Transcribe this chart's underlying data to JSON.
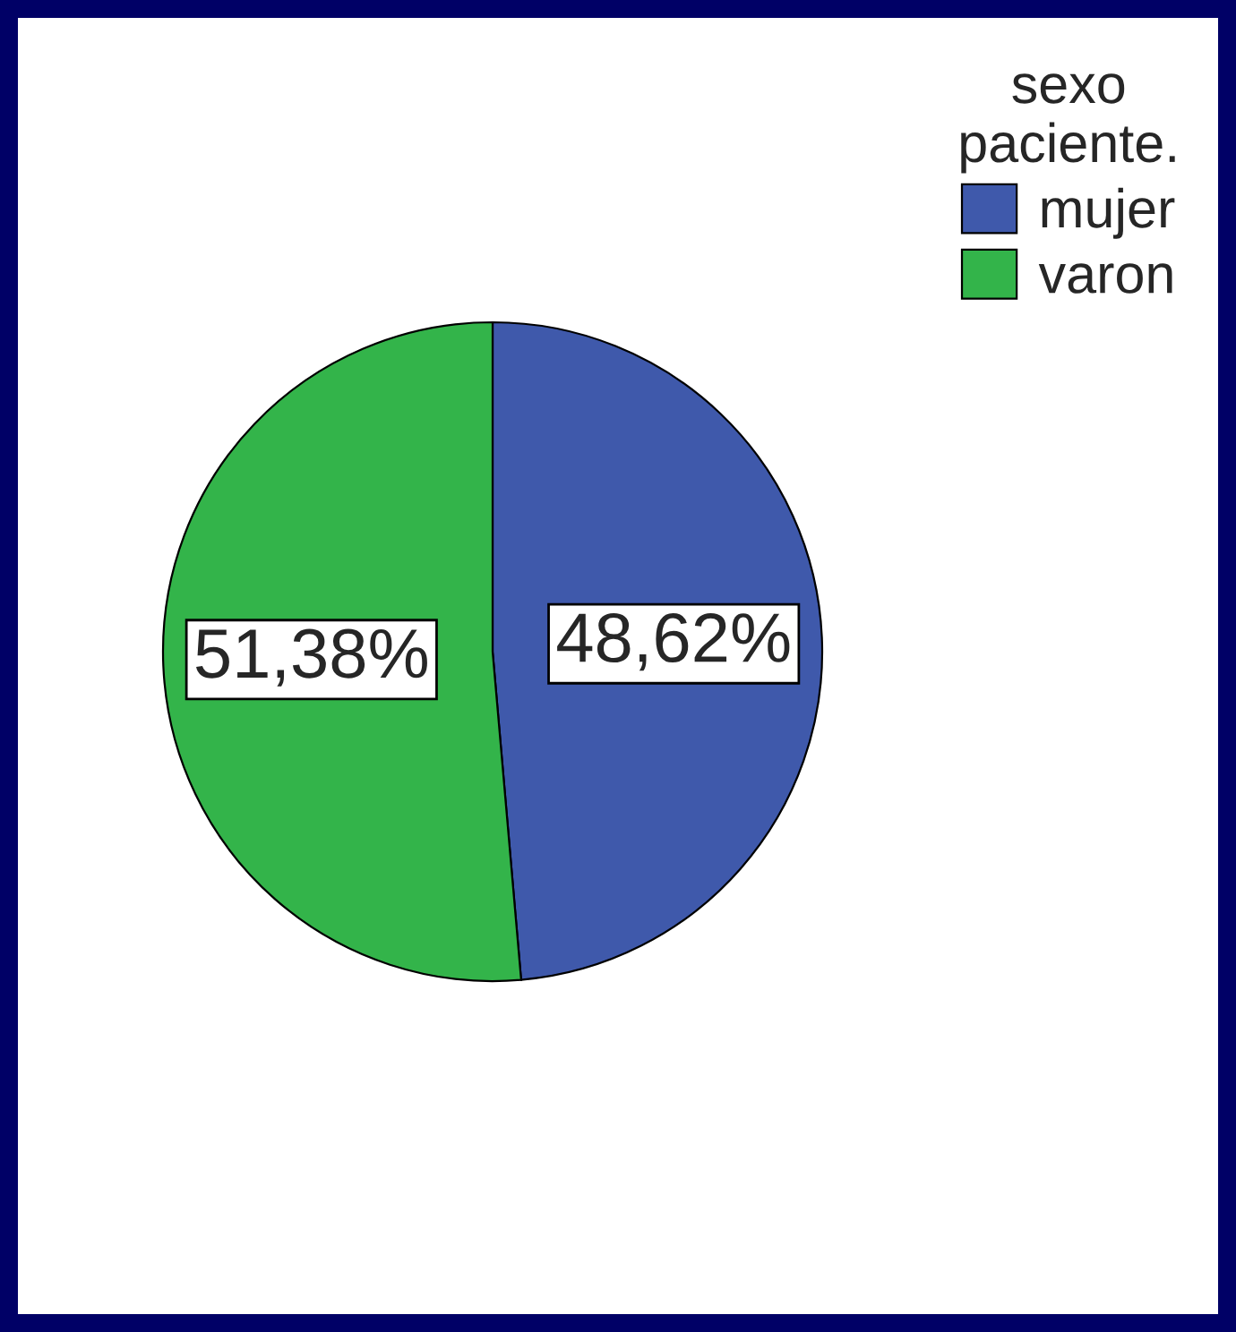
{
  "chart_data": {
    "type": "pie",
    "legend_title": "sexo\npaciente.",
    "categories": [
      "mujer",
      "varon"
    ],
    "values": [
      48.62,
      51.38
    ],
    "colors": [
      "#3f59ab",
      "#33b44a"
    ],
    "value_labels": [
      "48,62%",
      "51,38%"
    ],
    "legend": "top right"
  }
}
